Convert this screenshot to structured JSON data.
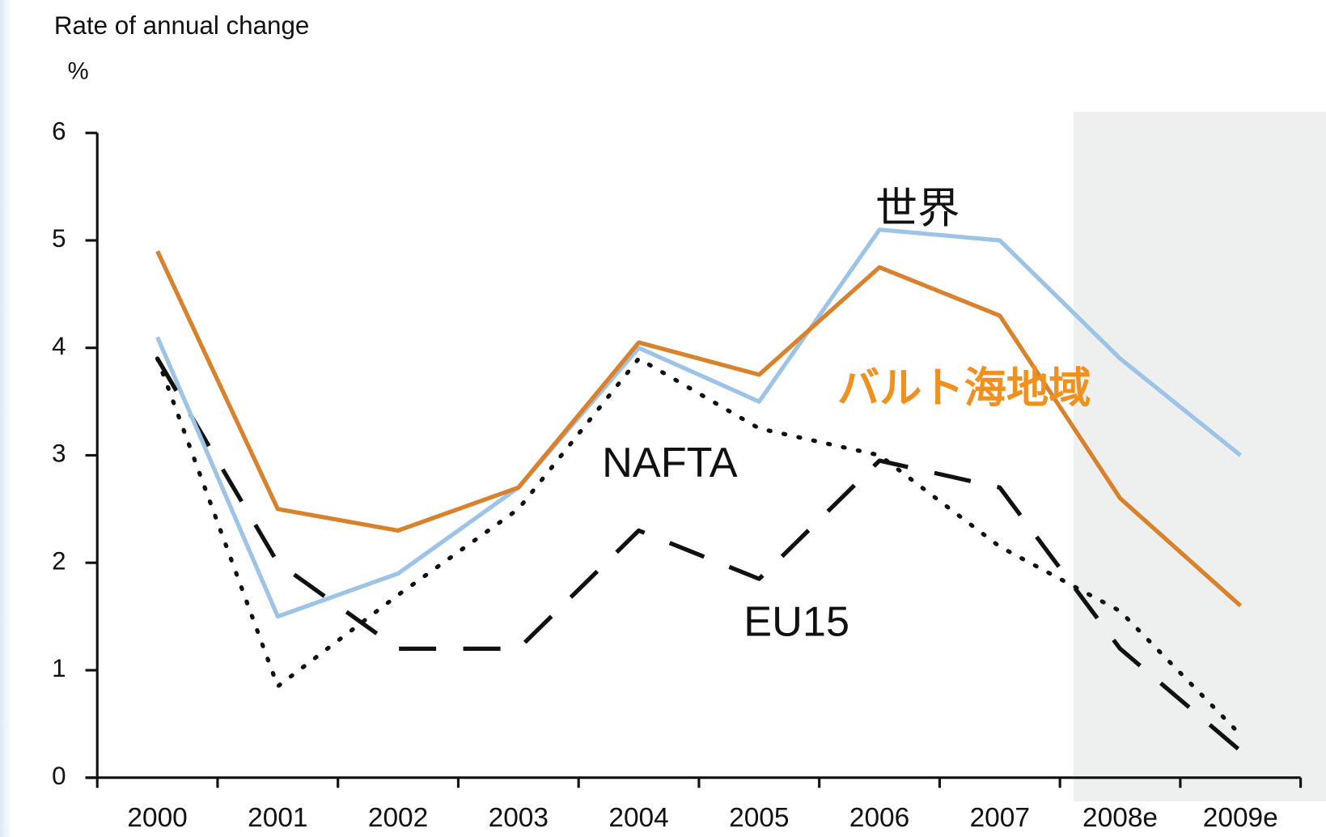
{
  "chart_data": {
    "type": "line",
    "title": "Rate of annual change",
    "y_label": "%",
    "categories": [
      "2000",
      "2001",
      "2002",
      "2003",
      "2004",
      "2005",
      "2006",
      "2007",
      "2008e",
      "2009e"
    ],
    "series": [
      {
        "name": "世界",
        "color": "#9dc3e6",
        "style": "solid",
        "values": [
          4.1,
          1.5,
          1.9,
          2.7,
          4.0,
          3.5,
          5.1,
          5.0,
          3.9,
          3.0
        ]
      },
      {
        "name": "バルト海地域",
        "color": "#d9822b",
        "style": "solid",
        "values": [
          4.9,
          2.5,
          2.3,
          2.7,
          4.05,
          3.75,
          4.75,
          4.3,
          2.6,
          1.6
        ]
      },
      {
        "name": "NAFTA",
        "color": "#111111",
        "style": "dotted",
        "values": [
          3.9,
          0.85,
          1.7,
          2.5,
          3.9,
          3.25,
          3.0,
          2.15,
          1.55,
          0.4
        ]
      },
      {
        "name": "EU15",
        "color": "#111111",
        "style": "dashed",
        "values": [
          3.9,
          2.0,
          1.2,
          1.2,
          2.3,
          1.85,
          2.95,
          2.7,
          1.2,
          0.25
        ]
      }
    ],
    "ylim": [
      0,
      6
    ],
    "yticks": [
      0,
      1,
      2,
      3,
      4,
      5,
      6
    ]
  }
}
